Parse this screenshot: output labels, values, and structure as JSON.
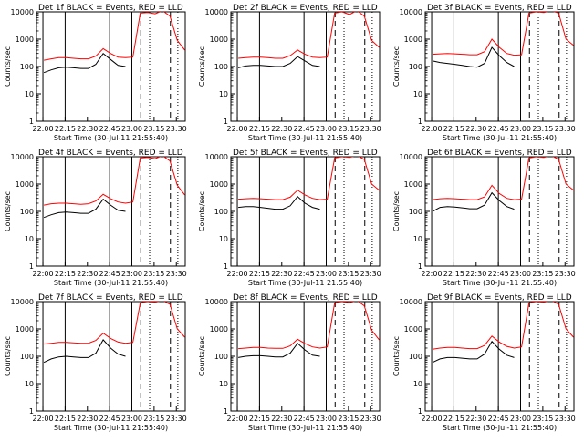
{
  "figure": {
    "xlabel": "Start Time (30-Jul-11 21:55:40)",
    "ylabel": "Counts/sec",
    "xticks": [
      "22:00",
      "22:15",
      "22:30",
      "22:45",
      "23:00",
      "23:15",
      "23:30"
    ],
    "yticks": [
      "1",
      "10",
      "100",
      "1000",
      "10000"
    ],
    "colors": {
      "events": "#000000",
      "lld": "#ff0000",
      "axes": "#000000",
      "background": "#ffffff"
    }
  },
  "chart_data": [
    {
      "type": "line",
      "title": "Det 1f BLACK = Events, RED = LLD",
      "xlabel": "Start Time (30-Jul-11 21:55:40)",
      "ylabel": "Counts/sec",
      "xlim": [
        "21:55:40",
        "23:36"
      ],
      "ylim": [
        1,
        10000
      ],
      "yscale": "log",
      "x_minutes": [
        0,
        5,
        10,
        15,
        20,
        25,
        30,
        35,
        40,
        45,
        50,
        55,
        60,
        65,
        70,
        75,
        80,
        85,
        90,
        95,
        100
      ],
      "series": [
        {
          "name": "Events",
          "color": "#000000",
          "values": [
            null,
            60,
            75,
            90,
            95,
            90,
            85,
            85,
            120,
            300,
            180,
            110,
            100,
            null,
            null,
            null,
            null,
            null,
            null,
            null,
            null
          ]
        },
        {
          "name": "LLD",
          "color": "#ff0000",
          "values": [
            null,
            170,
            190,
            210,
            210,
            200,
            190,
            190,
            240,
            450,
            300,
            220,
            210,
            220,
            9000,
            9500,
            8500,
            11000,
            7000,
            900,
            400
          ]
        }
      ],
      "vlines": {
        "solid": [
          "22:00",
          "22:15",
          "22:45",
          "23:00"
        ],
        "dashed": [
          "23:06",
          "23:26"
        ],
        "dotted": [
          "23:12",
          "23:31"
        ]
      }
    },
    {
      "type": "line",
      "title": "Det 2f BLACK = Events, RED = LLD",
      "xlabel": "Start Time (30-Jul-11 21:55:40)",
      "ylabel": "Counts/sec",
      "xlim": [
        "21:55:40",
        "23:36"
      ],
      "ylim": [
        1,
        10000
      ],
      "yscale": "log",
      "x_minutes": [
        0,
        5,
        10,
        15,
        20,
        25,
        30,
        35,
        40,
        45,
        50,
        55,
        60,
        65,
        70,
        75,
        80,
        85,
        90,
        95,
        100
      ],
      "series": [
        {
          "name": "Events",
          "color": "#000000",
          "values": [
            null,
            90,
            105,
            110,
            110,
            105,
            100,
            100,
            130,
            230,
            160,
            110,
            100,
            null,
            null,
            null,
            null,
            null,
            null,
            null,
            null
          ]
        },
        {
          "name": "LLD",
          "color": "#ff0000",
          "values": [
            null,
            200,
            210,
            220,
            220,
            210,
            200,
            200,
            250,
            400,
            280,
            220,
            210,
            220,
            9000,
            10000,
            8000,
            11000,
            7000,
            900,
            500
          ]
        }
      ],
      "vlines": {
        "solid": [
          "22:00",
          "22:15",
          "22:45",
          "23:00"
        ],
        "dashed": [
          "23:06",
          "23:26"
        ],
        "dotted": [
          "23:12",
          "23:31"
        ]
      }
    },
    {
      "type": "line",
      "title": "Det 3f BLACK = Events, RED = LLD",
      "xlabel": "Start Time (30-Jul-11 21:55:40)",
      "ylabel": "Counts/sec",
      "xlim": [
        "21:55:40",
        "23:36"
      ],
      "ylim": [
        1,
        10000
      ],
      "yscale": "log",
      "x_minutes": [
        0,
        5,
        10,
        15,
        20,
        25,
        30,
        35,
        40,
        45,
        50,
        55,
        60,
        65,
        70,
        75,
        80,
        85,
        90,
        95,
        100
      ],
      "series": [
        {
          "name": "Events",
          "color": "#000000",
          "values": [
            null,
            160,
            140,
            130,
            120,
            110,
            100,
            95,
            130,
            500,
            250,
            140,
            100,
            null,
            null,
            null,
            null,
            null,
            null,
            null,
            null
          ]
        },
        {
          "name": "LLD",
          "color": "#ff0000",
          "values": [
            null,
            280,
            290,
            300,
            290,
            280,
            270,
            270,
            350,
            1000,
            500,
            300,
            260,
            270,
            9000,
            10000,
            9500,
            11000,
            9000,
            1000,
            600
          ]
        }
      ],
      "vlines": {
        "solid": [
          "22:00",
          "22:15",
          "22:45",
          "23:00"
        ],
        "dashed": [
          "23:06",
          "23:26"
        ],
        "dotted": [
          "23:12",
          "23:31"
        ]
      }
    },
    {
      "type": "line",
      "title": "Det 4f BLACK = Events, RED = LLD",
      "xlabel": "Start Time (30-Jul-11 21:55:40)",
      "ylabel": "Counts/sec",
      "xlim": [
        "21:55:40",
        "23:36"
      ],
      "ylim": [
        1,
        10000
      ],
      "yscale": "log",
      "x_minutes": [
        0,
        5,
        10,
        15,
        20,
        25,
        30,
        35,
        40,
        45,
        50,
        55,
        60,
        65,
        70,
        75,
        80,
        85,
        90,
        95,
        100
      ],
      "series": [
        {
          "name": "Events",
          "color": "#000000",
          "values": [
            null,
            60,
            75,
            90,
            95,
            90,
            85,
            85,
            120,
            280,
            170,
            110,
            100,
            null,
            null,
            null,
            null,
            null,
            null,
            null,
            null
          ]
        },
        {
          "name": "LLD",
          "color": "#ff0000",
          "values": [
            null,
            170,
            190,
            200,
            200,
            190,
            180,
            190,
            240,
            420,
            290,
            220,
            200,
            220,
            9000,
            9500,
            8500,
            11000,
            7000,
            900,
            400
          ]
        }
      ],
      "vlines": {
        "solid": [
          "22:00",
          "22:15",
          "22:45",
          "23:00"
        ],
        "dashed": [
          "23:06",
          "23:26"
        ],
        "dotted": [
          "23:12",
          "23:31"
        ]
      }
    },
    {
      "type": "line",
      "title": "Det 5f BLACK = Events, RED = LLD",
      "xlabel": "Start Time (30-Jul-11 21:55:40)",
      "ylabel": "Counts/sec",
      "xlim": [
        "21:55:40",
        "23:36"
      ],
      "ylim": [
        1,
        10000
      ],
      "yscale": "log",
      "x_minutes": [
        0,
        5,
        10,
        15,
        20,
        25,
        30,
        35,
        40,
        45,
        50,
        55,
        60,
        65,
        70,
        75,
        80,
        85,
        90,
        95,
        100
      ],
      "series": [
        {
          "name": "Events",
          "color": "#000000",
          "values": [
            null,
            140,
            150,
            150,
            140,
            130,
            120,
            120,
            160,
            350,
            200,
            140,
            120,
            null,
            null,
            null,
            null,
            null,
            null,
            null,
            null
          ]
        },
        {
          "name": "LLD",
          "color": "#ff0000",
          "values": [
            null,
            280,
            290,
            300,
            290,
            280,
            270,
            270,
            330,
            600,
            400,
            300,
            270,
            280,
            9000,
            10000,
            9500,
            11000,
            8000,
            1000,
            600
          ]
        }
      ],
      "vlines": {
        "solid": [
          "22:00",
          "22:15",
          "22:45",
          "23:00"
        ],
        "dashed": [
          "23:06",
          "23:26"
        ],
        "dotted": [
          "23:12",
          "23:31"
        ]
      }
    },
    {
      "type": "line",
      "title": "Det 6f BLACK = Events, RED = LLD",
      "xlabel": "Start Time (30-Jul-11 21:55:40)",
      "ylabel": "Counts/sec",
      "xlim": [
        "21:55:40",
        "23:36"
      ],
      "ylim": [
        1,
        10000
      ],
      "yscale": "log",
      "x_minutes": [
        0,
        5,
        10,
        15,
        20,
        25,
        30,
        35,
        40,
        45,
        50,
        55,
        60,
        65,
        70,
        75,
        80,
        85,
        90,
        95,
        100
      ],
      "series": [
        {
          "name": "Events",
          "color": "#000000",
          "values": [
            null,
            100,
            140,
            150,
            145,
            135,
            125,
            125,
            170,
            480,
            250,
            150,
            120,
            null,
            null,
            null,
            null,
            null,
            null,
            null,
            null
          ]
        },
        {
          "name": "LLD",
          "color": "#ff0000",
          "values": [
            null,
            270,
            290,
            300,
            290,
            280,
            270,
            270,
            340,
            900,
            450,
            300,
            270,
            280,
            9000,
            10000,
            9500,
            11000,
            8000,
            1000,
            600
          ]
        }
      ],
      "vlines": {
        "solid": [
          "22:00",
          "22:15",
          "22:45",
          "23:00"
        ],
        "dashed": [
          "23:06",
          "23:26"
        ],
        "dotted": [
          "23:12",
          "23:31"
        ]
      }
    },
    {
      "type": "line",
      "title": "Det 7f BLACK = Events, RED = LLD",
      "xlabel": "Start Time (30-Jul-11 21:55:40)",
      "ylabel": "Counts/sec",
      "xlim": [
        "21:55:40",
        "23:36"
      ],
      "ylim": [
        1,
        10000
      ],
      "yscale": "log",
      "x_minutes": [
        0,
        5,
        10,
        15,
        20,
        25,
        30,
        35,
        40,
        45,
        50,
        55,
        60,
        65,
        70,
        75,
        80,
        85,
        90,
        95,
        100
      ],
      "series": [
        {
          "name": "Events",
          "color": "#000000",
          "values": [
            null,
            60,
            80,
            95,
            100,
            95,
            90,
            90,
            130,
            400,
            200,
            120,
            100,
            null,
            null,
            null,
            null,
            null,
            null,
            null,
            null
          ]
        },
        {
          "name": "LLD",
          "color": "#ff0000",
          "values": [
            null,
            280,
            300,
            320,
            320,
            310,
            300,
            300,
            380,
            700,
            450,
            330,
            300,
            320,
            9000,
            10000,
            9500,
            11000,
            8000,
            1000,
            500
          ]
        }
      ],
      "vlines": {
        "solid": [
          "22:00",
          "22:15",
          "22:45",
          "23:00"
        ],
        "dashed": [
          "23:06",
          "23:26"
        ],
        "dotted": [
          "23:12",
          "23:31"
        ]
      }
    },
    {
      "type": "line",
      "title": "Det 8f BLACK = Events, RED = LLD",
      "xlabel": "Start Time (30-Jul-11 21:55:40)",
      "ylabel": "Counts/sec",
      "xlim": [
        "21:55:40",
        "23:36"
      ],
      "ylim": [
        1,
        10000
      ],
      "yscale": "log",
      "x_minutes": [
        0,
        5,
        10,
        15,
        20,
        25,
        30,
        35,
        40,
        45,
        50,
        55,
        60,
        65,
        70,
        75,
        80,
        85,
        90,
        95,
        100
      ],
      "series": [
        {
          "name": "Events",
          "color": "#000000",
          "values": [
            null,
            90,
            100,
            105,
            105,
            100,
            95,
            95,
            130,
            300,
            170,
            110,
            100,
            null,
            null,
            null,
            null,
            null,
            null,
            null,
            null
          ]
        },
        {
          "name": "LLD",
          "color": "#ff0000",
          "values": [
            null,
            190,
            200,
            210,
            210,
            200,
            195,
            195,
            240,
            420,
            290,
            220,
            200,
            220,
            9000,
            10000,
            9000,
            11000,
            7000,
            900,
            400
          ]
        }
      ],
      "vlines": {
        "solid": [
          "22:00",
          "22:15",
          "22:45",
          "23:00"
        ],
        "dashed": [
          "23:06",
          "23:26"
        ],
        "dotted": [
          "23:12",
          "23:31"
        ]
      }
    },
    {
      "type": "line",
      "title": "Det 9f BLACK = Events, RED = LLD",
      "xlabel": "Start Time (30-Jul-11 21:55:40)",
      "ylabel": "Counts/sec",
      "xlim": [
        "21:55:40",
        "23:36"
      ],
      "ylim": [
        1,
        10000
      ],
      "yscale": "log",
      "x_minutes": [
        0,
        5,
        10,
        15,
        20,
        25,
        30,
        35,
        40,
        45,
        50,
        55,
        60,
        65,
        70,
        75,
        80,
        85,
        90,
        95,
        100
      ],
      "series": [
        {
          "name": "Events",
          "color": "#000000",
          "values": [
            null,
            60,
            80,
            90,
            90,
            85,
            80,
            80,
            120,
            350,
            180,
            110,
            90,
            null,
            null,
            null,
            null,
            null,
            null,
            null,
            null
          ]
        },
        {
          "name": "LLD",
          "color": "#ff0000",
          "values": [
            null,
            180,
            200,
            210,
            210,
            200,
            190,
            190,
            250,
            550,
            330,
            230,
            200,
            220,
            9000,
            10000,
            9500,
            11000,
            8000,
            1000,
            500
          ]
        }
      ],
      "vlines": {
        "solid": [
          "22:00",
          "22:15",
          "22:45",
          "23:00"
        ],
        "dashed": [
          "23:06",
          "23:26"
        ],
        "dotted": [
          "23:12",
          "23:31"
        ]
      }
    }
  ]
}
